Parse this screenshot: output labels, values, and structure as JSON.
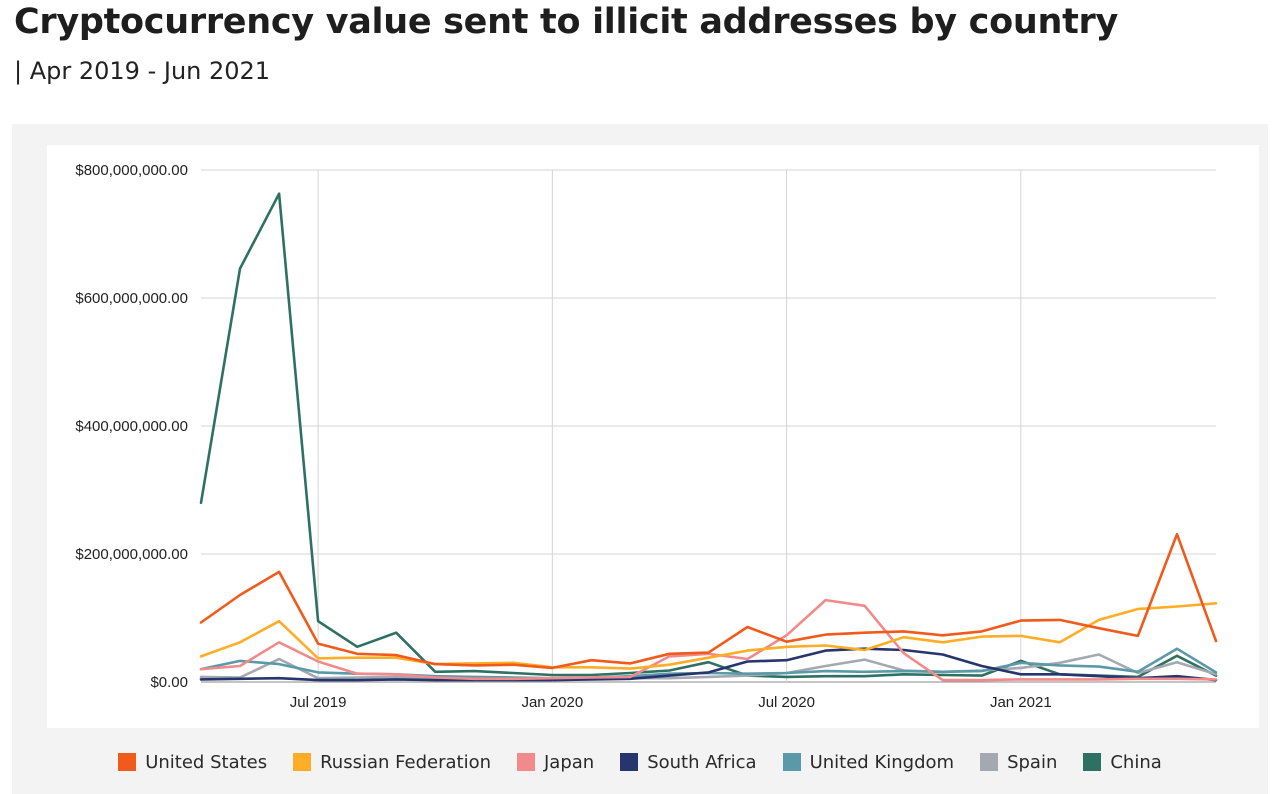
{
  "title": "Cryptocurrency value sent to illicit addresses by country",
  "subtitle": "| Apr 2019 - Jun 2021",
  "chart_data": {
    "type": "line",
    "title": "Cryptocurrency value sent to illicit addresses by country",
    "subtitle": "| Apr 2019 - Jun 2021",
    "xlabel": "",
    "ylabel": "",
    "ylim": [
      0,
      800000000
    ],
    "yticks": [
      {
        "value": 0,
        "label": "$0.00"
      },
      {
        "value": 200000000,
        "label": "$200,000,000.00"
      },
      {
        "value": 400000000,
        "label": "$400,000,000.00"
      },
      {
        "value": 600000000,
        "label": "$600,000,000.00"
      },
      {
        "value": 800000000,
        "label": "$800,000,000.00"
      }
    ],
    "xticks": [
      {
        "index": 3,
        "label": "Jul 2019"
      },
      {
        "index": 9,
        "label": "Jan 2020"
      },
      {
        "index": 15,
        "label": "Jul 2020"
      },
      {
        "index": 21,
        "label": "Jan 2021"
      }
    ],
    "grid": true,
    "legend_position": "bottom",
    "categories": [
      "2019-04",
      "2019-05",
      "2019-06",
      "2019-07",
      "2019-08",
      "2019-09",
      "2019-10",
      "2019-11",
      "2019-12",
      "2020-01",
      "2020-02",
      "2020-03",
      "2020-04",
      "2020-05",
      "2020-06",
      "2020-07",
      "2020-08",
      "2020-09",
      "2020-10",
      "2020-11",
      "2020-12",
      "2021-01",
      "2021-02",
      "2021-03",
      "2021-04",
      "2021-05",
      "2021-06"
    ],
    "series": [
      {
        "name": "United States",
        "color": "#f05a1a",
        "values": [
          93000000,
          136000000,
          172000000,
          60000000,
          44000000,
          42000000,
          28000000,
          26000000,
          27000000,
          22000000,
          34000000,
          29000000,
          44000000,
          46000000,
          86000000,
          63000000,
          74000000,
          77000000,
          79000000,
          73000000,
          79000000,
          96000000,
          97000000,
          84000000,
          72000000,
          231000000,
          64000000
        ]
      },
      {
        "name": "Russian Federation",
        "color": "#ffac26",
        "values": [
          40000000,
          62000000,
          95000000,
          37000000,
          38000000,
          38000000,
          28000000,
          29000000,
          30000000,
          23000000,
          23000000,
          21000000,
          27000000,
          38000000,
          49000000,
          55000000,
          57000000,
          50000000,
          70000000,
          62000000,
          71000000,
          72000000,
          62000000,
          97000000,
          114000000,
          118000000,
          123000000
        ]
      },
      {
        "name": "Japan",
        "color": "#f28a8c",
        "values": [
          20000000,
          25000000,
          62000000,
          32000000,
          13000000,
          12000000,
          7000000,
          5000000,
          5000000,
          6000000,
          7000000,
          8000000,
          40000000,
          44000000,
          36000000,
          73000000,
          128000000,
          119000000,
          45000000,
          3000000,
          3000000,
          4000000,
          4000000,
          4000000,
          5000000,
          5000000,
          4000000
        ]
      },
      {
        "name": "South Africa",
        "color": "#27356e",
        "values": [
          4000000,
          5000000,
          6000000,
          3000000,
          3000000,
          4000000,
          3000000,
          3000000,
          3000000,
          3000000,
          4000000,
          5000000,
          10000000,
          15000000,
          32000000,
          34000000,
          49000000,
          52000000,
          50000000,
          43000000,
          25000000,
          12000000,
          12000000,
          9000000,
          6000000,
          9000000,
          3000000
        ]
      },
      {
        "name": "United Kingdom",
        "color": "#5a9aa8",
        "values": [
          20000000,
          33000000,
          28000000,
          15000000,
          13000000,
          12000000,
          9000000,
          8000000,
          7000000,
          6000000,
          7000000,
          9000000,
          13000000,
          14000000,
          13000000,
          14000000,
          17000000,
          16000000,
          17000000,
          16000000,
          17000000,
          30000000,
          26000000,
          24000000,
          16000000,
          52000000,
          15000000
        ]
      },
      {
        "name": "Spain",
        "color": "#a4a9b1",
        "values": [
          8000000,
          7000000,
          36000000,
          6000000,
          7000000,
          8000000,
          6000000,
          5000000,
          5000000,
          5000000,
          6000000,
          6000000,
          6000000,
          8000000,
          10000000,
          14000000,
          25000000,
          35000000,
          18000000,
          16000000,
          18000000,
          22000000,
          30000000,
          43000000,
          14000000,
          31000000,
          12000000
        ]
      },
      {
        "name": "China",
        "color": "#2e7163",
        "values": [
          280000000,
          646000000,
          763000000,
          95000000,
          55000000,
          77000000,
          16000000,
          17000000,
          14000000,
          11000000,
          11000000,
          14000000,
          18000000,
          31000000,
          10000000,
          8000000,
          9000000,
          9000000,
          12000000,
          11000000,
          10000000,
          33000000,
          12000000,
          10000000,
          8000000,
          41000000,
          10000000
        ]
      }
    ]
  }
}
